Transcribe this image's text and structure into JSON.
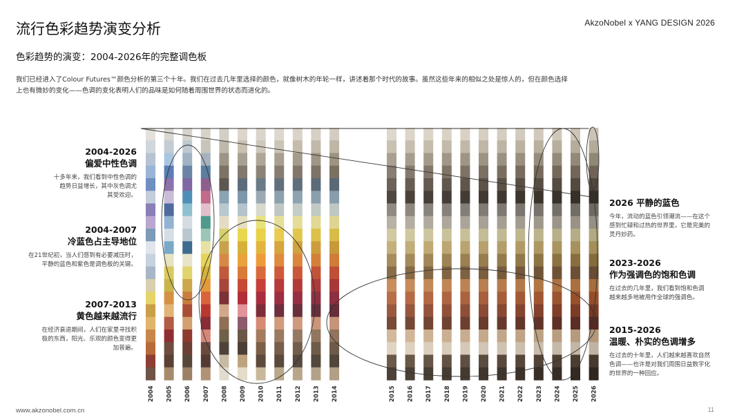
{
  "header": {
    "brand": "AkzoNobel x YANG DESIGN 2026",
    "title": "流行色彩趋势演变分析",
    "subtitle": "色彩趋势的演变：2004-2026年的完整调色板",
    "intro_line1": "我们已经进入了Colour Futures™颜色分析的第三个十年。我们在过去几年里选择的颜色，就像树木的年轮一样，讲述着那个时代的故事。虽然这些年来的相似之处是惊人的，但在颜色选择",
    "intro_line2": "上也有微妙的变化——色调的变化表明人们的品味是如何随着周围世界的状态而进化的。"
  },
  "annotations": {
    "a1": {
      "years": "2004-2026",
      "heading": "偏爱中性色调",
      "text": [
        "十多年来，我们看到中性色调的",
        "趋势日益增长，其中灰色调尤",
        "其受欢迎。"
      ]
    },
    "a2": {
      "years": "2004-2007",
      "heading": "冷蓝色占主导地位",
      "text": [
        "在21世纪初，当人们感到有必要减压时，",
        "平静的蓝色和紫色是调色板的关键。"
      ]
    },
    "a3": {
      "years": "2007-2013",
      "heading": "黄色越来越流行",
      "text": [
        "在经济衰退期间，人们在家里寻找积",
        "极的东西，阳光、乐观的颜色变得更",
        "加普遍。"
      ]
    },
    "a4": {
      "title": "2026  平静的蓝色",
      "text": [
        "今年，流动的蓝色引领潮流——在这个",
        "感到忙碌和过热的世界里，它是完美的",
        "灵丹妙药。"
      ]
    },
    "a5": {
      "years": "2023-2026",
      "heading": "作为强调色的饱和色调",
      "text": [
        "在过去的几年里，我们看到饱和色调",
        "越来越多地被用作全球的强调色。"
      ]
    },
    "a6": {
      "years": "2015-2026",
      "heading": "温暖、朴实的色调增多",
      "text": [
        "在过去的十年里，人们越来越喜欢自然",
        "色调——也许是对我们周围日益数字化",
        "的世界的一种回应。"
      ]
    }
  },
  "chart_data": {
    "type": "table",
    "groups": [
      [
        "2004",
        "2005",
        "2006",
        "2007",
        "2008",
        "2009",
        "2010",
        "2011",
        "2012",
        "2013",
        "2014"
      ],
      [
        "2015",
        "2016",
        "2017",
        "2018",
        "2019",
        "2020",
        "2021",
        "2022",
        "2023",
        "2024",
        "2025",
        "2026"
      ]
    ],
    "palettes": {
      "2004": [
        "#e3e1da",
        "#cfd7dd",
        "#b7c3d3",
        "#9ab4d6",
        "#6f8fc2",
        "#c3cddb",
        "#8a7fb6",
        "#b9a7cf",
        "#7c9bb8",
        "#dfe5ea",
        "#c6d2de",
        "#a7b7c7",
        "#d9cfae",
        "#e5d46a",
        "#c9a047",
        "#e0b56a",
        "#c9864b",
        "#b96a3c",
        "#8e3f33",
        "#6f5447"
      ],
      "2005": [
        "#dad8d2",
        "#c4ccd3",
        "#a9c6e1",
        "#5a7fb5",
        "#8c73ad",
        "#c9bcd8",
        "#4f6b9e",
        "#93b3d3",
        "#d6dee5",
        "#7aa8c9",
        "#e7e3c1",
        "#d9c95e",
        "#c7b54a",
        "#d59143",
        "#e1b578",
        "#b35b45",
        "#8e2e32",
        "#6e4d3f",
        "#5b4033",
        "#a78a6a"
      ],
      "2006": [
        "#d6d3cc",
        "#bfc9d1",
        "#9fb3c5",
        "#6b84a5",
        "#7f67a3",
        "#4f8fb7",
        "#8fc0cf",
        "#d5dde2",
        "#b8c7d0",
        "#3e6a8e",
        "#e8e4c9",
        "#e0d46d",
        "#cba84b",
        "#c97d3d",
        "#a84e35",
        "#d3a071",
        "#8f3a2e",
        "#6b3f33",
        "#574739",
        "#9c8067"
      ],
      "2007": [
        "#d8d3c7",
        "#c7c5bb",
        "#a6b3bf",
        "#5b7fa0",
        "#8e5e8e",
        "#c16a8a",
        "#e1bfcb",
        "#4f9a8a",
        "#9cc5b8",
        "#e8e1a3",
        "#e6d35a",
        "#d8b33c",
        "#e49a3a",
        "#d9643b",
        "#b8372f",
        "#8a2b36",
        "#d6877a",
        "#6a4a3c",
        "#553a34",
        "#b09276"
      ],
      "2008": [
        "#d3cfc6",
        "#beb8ab",
        "#9d9487",
        "#7d7266",
        "#5e5651",
        "#8aa3b5",
        "#b9c8cf",
        "#e4dcc2",
        "#d8cf6e",
        "#c8a24a",
        "#d88845",
        "#c05a3a",
        "#a8453a",
        "#7d3036",
        "#d3a78a",
        "#8f6f55",
        "#6f6048",
        "#4f4339",
        "#c8bba3",
        "#e2dbd0"
      ],
      "2009": [
        "#dcd6cb",
        "#c9c0b1",
        "#a8a092",
        "#82786c",
        "#5d6c7a",
        "#7d97ab",
        "#b4c3cc",
        "#e6dfbf",
        "#e8d84e",
        "#d6b23c",
        "#e9a23c",
        "#d97a36",
        "#c64b35",
        "#b02f38",
        "#e2949a",
        "#8e5a6d",
        "#6b5748",
        "#4c3f36",
        "#bfa37f",
        "#e4dbc8"
      ],
      "2010": [
        "#dad5cc",
        "#cdc6ba",
        "#aea697",
        "#8c8376",
        "#6a7a86",
        "#9aa9b3",
        "#d7d9cf",
        "#e8e27a",
        "#e9d148",
        "#e2b63c",
        "#ee9c3a",
        "#d96a3b",
        "#c63f3a",
        "#a82d3e",
        "#7e2c3a",
        "#d78a73",
        "#a47b5e",
        "#7d5f48",
        "#5c4a3c",
        "#c9b899"
      ],
      "2011": [
        "#ddd8cf",
        "#cac3b6",
        "#a89f90",
        "#867d70",
        "#62707c",
        "#8da0ad",
        "#bfc7c5",
        "#e6df98",
        "#e8cc4f",
        "#d7a43e",
        "#e08a3d",
        "#cf5a3a",
        "#b83a3c",
        "#9c2f42",
        "#6e2e3e",
        "#d39a7d",
        "#9a7b60",
        "#765f4b",
        "#5a4a3e",
        "#bba88a"
      ],
      "2012": [
        "#d9d3c8",
        "#c5bcac",
        "#a59b8b",
        "#82776a",
        "#5f6f7b",
        "#8ea3b0",
        "#c4ccc8",
        "#e5dc97",
        "#e2c64c",
        "#d0a23e",
        "#da863c",
        "#c95839",
        "#b23a3b",
        "#962f41",
        "#6a2f3c",
        "#cf9a7e",
        "#967962",
        "#735e4c",
        "#57493e",
        "#b8a68b"
      ],
      "2013": [
        "#d6d0c5",
        "#c1b8a9",
        "#a09686",
        "#7d7366",
        "#5b6b77",
        "#8a9fac",
        "#c1c9c4",
        "#e1d894",
        "#dcc04a",
        "#cb9d3c",
        "#d4803a",
        "#c25338",
        "#ab3a3b",
        "#8f3040",
        "#672f3b",
        "#ca967b",
        "#93765f",
        "#6f5b4a",
        "#54473c",
        "#b4a288"
      ],
      "2014": [
        "#d4cec2",
        "#bfb6a6",
        "#9e9483",
        "#7b7163",
        "#5a6975",
        "#889dab",
        "#bfc7c2",
        "#ded592",
        "#d8bc48",
        "#c7993a",
        "#d07c39",
        "#bf5037",
        "#a8383a",
        "#8c2f3f",
        "#642e3a",
        "#c79379",
        "#91745e",
        "#6d5a49",
        "#52463b",
        "#b29f86"
      ],
      "2015": [
        "#ddd7cc",
        "#c9c1b2",
        "#a9a091",
        "#877d70",
        "#6c6258",
        "#4f4740",
        "#8f8a82",
        "#b7b1a6",
        "#d1c99f",
        "#c4b07a",
        "#a88c5d",
        "#8a6d48",
        "#c98e5c",
        "#b86e47",
        "#9b5a3f",
        "#7a4a38",
        "#d4b89a",
        "#e1d4c2",
        "#6b5a4a",
        "#4e4238"
      ],
      "2016": [
        "#dcd5c9",
        "#c7beaf",
        "#a69d8e",
        "#847a6d",
        "#675d53",
        "#4a423b",
        "#8c877f",
        "#b3ada2",
        "#cfc7a0",
        "#c1ad78",
        "#a4895b",
        "#876a46",
        "#c58b5a",
        "#b46b45",
        "#97573d",
        "#764836",
        "#d0b597",
        "#ded1bf",
        "#685848",
        "#4b4036"
      ],
      "2017": [
        "#dbd4c7",
        "#c5bcac",
        "#a49a8b",
        "#82776a",
        "#645a50",
        "#474039",
        "#89847c",
        "#b0aa9f",
        "#cdc59d",
        "#bfaa75",
        "#a18658",
        "#846744",
        "#c28857",
        "#b16843",
        "#94543b",
        "#734534",
        "#cdb294",
        "#dbcebc",
        "#655546",
        "#483e34"
      ],
      "2018": [
        "#d9d2c5",
        "#c3baa9",
        "#a19787",
        "#7f7466",
        "#61574d",
        "#453e37",
        "#86817a",
        "#ada79c",
        "#cac29a",
        "#bca772",
        "#9e8355",
        "#816442",
        "#bf8554",
        "#ae6541",
        "#915139",
        "#704232",
        "#caaf91",
        "#d8cbb9",
        "#625244",
        "#463c32"
      ],
      "2019": [
        "#d8d1c4",
        "#c2b8a7",
        "#9f9584",
        "#7d7264",
        "#5f554b",
        "#433c35",
        "#837e77",
        "#aaa499",
        "#c7bf97",
        "#b9a46f",
        "#9b8052",
        "#7e6140",
        "#bc8251",
        "#ab623e",
        "#8e4e37",
        "#6d3f30",
        "#c7ac8e",
        "#d5c8b6",
        "#5f4f42",
        "#443a30"
      ],
      "2020": [
        "#d6cfc2",
        "#c0b6a5",
        "#9d9382",
        "#7b7062",
        "#5d5349",
        "#413a33",
        "#807b74",
        "#a7a196",
        "#c4bc94",
        "#b6a16c",
        "#987d4f",
        "#7b5e3e",
        "#b97f4e",
        "#a85f3c",
        "#8b4b35",
        "#6a3c2e",
        "#c4a98b",
        "#d2c5b3",
        "#5c4c3f",
        "#41372e"
      ],
      "2021": [
        "#d4cdc0",
        "#beb4a3",
        "#9b9180",
        "#796e60",
        "#5b5147",
        "#3f3831",
        "#7d7871",
        "#a49e93",
        "#c1b991",
        "#b39e69",
        "#957a4c",
        "#785b3c",
        "#b67c4b",
        "#a55c39",
        "#884832",
        "#67392c",
        "#c1a688",
        "#cfc2b0",
        "#59493d",
        "#3e352c"
      ],
      "2022": [
        "#d2cbbe",
        "#bcb2a1",
        "#998f7e",
        "#776c5e",
        "#594f45",
        "#3d362f",
        "#7a756e",
        "#a19b90",
        "#beb68e",
        "#b09b66",
        "#927749",
        "#75583a",
        "#b37948",
        "#a25936",
        "#85452f",
        "#64362a",
        "#bea385",
        "#ccbfad",
        "#56463a",
        "#3b322a"
      ],
      "2023": [
        "#d0c9bc",
        "#bab09f",
        "#978d7c",
        "#756a5c",
        "#574d43",
        "#3b342d",
        "#77726b",
        "#9e988d",
        "#bbb38b",
        "#ad9863",
        "#8f7446",
        "#725538",
        "#b07645",
        "#9f5633",
        "#82422c",
        "#613328",
        "#bba082",
        "#c9bcaa",
        "#534337",
        "#382f27"
      ],
      "2024": [
        "#cec7ba",
        "#b8ae9d",
        "#958b7a",
        "#73685a",
        "#554b41",
        "#39322b",
        "#747068",
        "#9b958a",
        "#b8b088",
        "#aa9560",
        "#8c7143",
        "#6f5236",
        "#ad7342",
        "#9c5330",
        "#7f3f29",
        "#5e3026",
        "#b89d7f",
        "#c6b9a7",
        "#504034",
        "#352c24"
      ],
      "2025": [
        "#ccc5b8",
        "#b6ac9b",
        "#938978",
        "#716658",
        "#53493f",
        "#373029",
        "#716d65",
        "#989287",
        "#b5ad85",
        "#a7925d",
        "#896e40",
        "#6c4f34",
        "#aa703f",
        "#99502d",
        "#7c3c26",
        "#5b2d24",
        "#b59a7c",
        "#c3b6a4",
        "#4d3d31",
        "#322921"
      ],
      "2026": [
        "#cac3b6",
        "#b4aa99",
        "#918776",
        "#6f6456",
        "#51473d",
        "#352e27",
        "#6e6a62",
        "#958f84",
        "#b2aa82",
        "#a48f5a",
        "#866b3d",
        "#694c32",
        "#a76d3c",
        "#964d2a",
        "#793923",
        "#582a22",
        "#b29779",
        "#c0b3a1",
        "#4a3a2e",
        "#2f261e"
      ]
    }
  }
}
